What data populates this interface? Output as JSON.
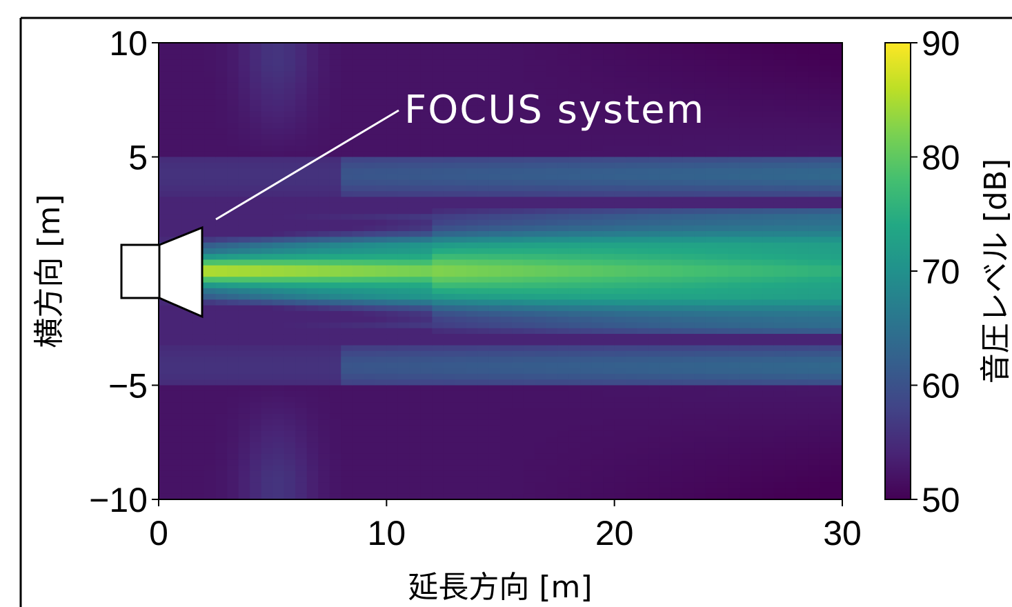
{
  "chart_data": {
    "type": "heatmap",
    "title": "",
    "xlabel": "延長方向 [m]",
    "ylabel": "横方向 [m]",
    "xlim": [
      0,
      30
    ],
    "ylim": [
      -10,
      10
    ],
    "x_ticks": [
      0,
      10,
      20,
      30
    ],
    "y_ticks": [
      10,
      5,
      -5,
      -10
    ],
    "x_tick_labels": [
      "0",
      "10",
      "20",
      "30"
    ],
    "y_tick_labels": [
      "10",
      "5",
      "−5",
      "−10"
    ],
    "colormap": "viridis",
    "colorbar": {
      "label": "音圧レベル [dB]",
      "range": [
        50,
        90
      ],
      "ticks": [
        90,
        80,
        70,
        60,
        50
      ],
      "tick_labels": [
        "90",
        "80",
        "70",
        "60",
        "50"
      ]
    },
    "annotation": {
      "text": "FOCUS system",
      "color": "#ffffff"
    },
    "source": {
      "shape": "loudspeaker",
      "x_range": [
        -1.7,
        1.9
      ],
      "y_range": [
        -2.2,
        1.8
      ]
    },
    "grid": false,
    "field_description": {
      "beam_center_y": 0,
      "beam_peak_dB": 88,
      "beam_edge_y": [
        -2.7,
        2.7
      ],
      "background_dB": 54
    }
  }
}
